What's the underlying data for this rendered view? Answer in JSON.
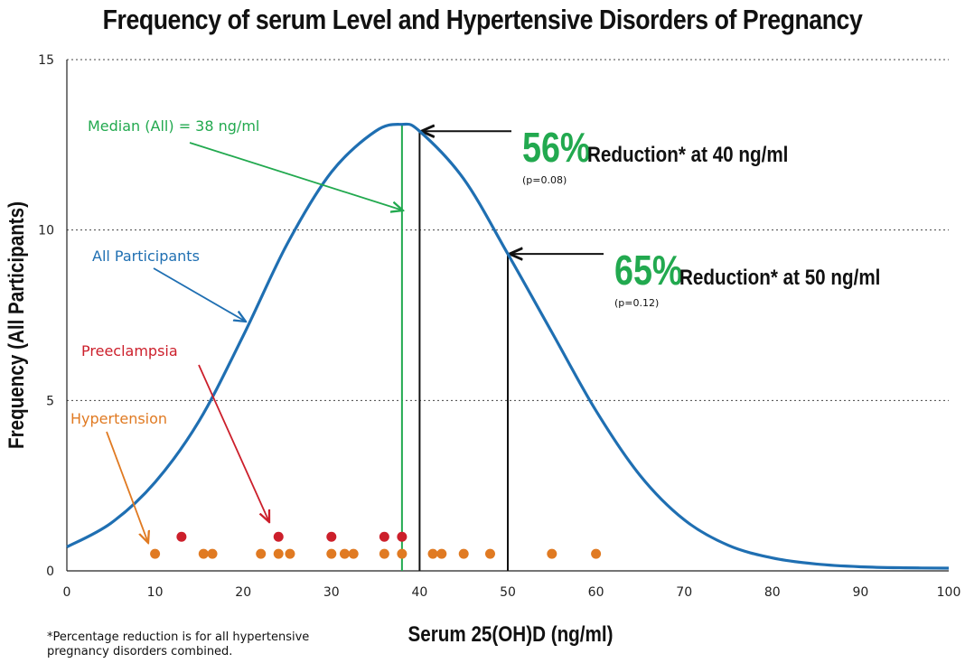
{
  "chart_data": {
    "type": "line",
    "title": "Frequency of serum Level and Hypertensive Disorders of Pregnancy",
    "xlabel": "Serum 25(OH)D (ng/ml)",
    "ylabel": "Frequency (All Participants)",
    "xlim": [
      0,
      100
    ],
    "ylim": [
      0,
      15
    ],
    "x_ticks": [
      0,
      10,
      20,
      30,
      40,
      50,
      60,
      70,
      80,
      90,
      100
    ],
    "y_ticks": [
      0,
      5,
      10,
      15
    ],
    "grid": "horizontal dotted",
    "colors": {
      "all_participants": "#1f6fb2",
      "median": "#22a94f",
      "preeclampsia": "#cc1f2b",
      "hypertension": "#e07a22",
      "reduction_percent": "#22a94f"
    },
    "series": [
      {
        "name": "All Participants",
        "type": "line",
        "points": [
          [
            0,
            0.7
          ],
          [
            5,
            1.4
          ],
          [
            10,
            2.6
          ],
          [
            15,
            4.4
          ],
          [
            20,
            6.9
          ],
          [
            25,
            9.6
          ],
          [
            30,
            11.7
          ],
          [
            35,
            12.9
          ],
          [
            38,
            13.1
          ],
          [
            40,
            12.9
          ],
          [
            45,
            11.5
          ],
          [
            50,
            9.3
          ],
          [
            55,
            7.0
          ],
          [
            60,
            4.7
          ],
          [
            65,
            2.8
          ],
          [
            70,
            1.5
          ],
          [
            75,
            0.75
          ],
          [
            80,
            0.38
          ],
          [
            85,
            0.2
          ],
          [
            90,
            0.12
          ],
          [
            95,
            0.09
          ],
          [
            100,
            0.08
          ]
        ]
      },
      {
        "name": "Preeclampsia",
        "type": "scatter",
        "points": [
          [
            13,
            1
          ],
          [
            24,
            1
          ],
          [
            30,
            1
          ],
          [
            36,
            1
          ],
          [
            38,
            1
          ]
        ]
      },
      {
        "name": "Hypertension",
        "type": "scatter",
        "points": [
          [
            10,
            0.5
          ],
          [
            15.5,
            0.5
          ],
          [
            16.5,
            0.5
          ],
          [
            22,
            0.5
          ],
          [
            24,
            0.5
          ],
          [
            25.3,
            0.5
          ],
          [
            30,
            0.5
          ],
          [
            31.5,
            0.5
          ],
          [
            32.5,
            0.5
          ],
          [
            36,
            0.5
          ],
          [
            38,
            0.5
          ],
          [
            41.5,
            0.5
          ],
          [
            42.5,
            0.5
          ],
          [
            45,
            0.5
          ],
          [
            48,
            0.5
          ],
          [
            55,
            0.5
          ],
          [
            60,
            0.5
          ]
        ]
      }
    ],
    "annotations": {
      "median": {
        "label": "Median (All) = 38 ng/ml",
        "x": 38
      },
      "all_participants": {
        "label": "All Participants"
      },
      "preeclampsia": {
        "label": "Preeclampsia"
      },
      "hypertension": {
        "label": "Hypertension"
      },
      "reductions": [
        {
          "x": 40,
          "percent": "56%",
          "text": "Reduction* at 40 ng/ml",
          "p": "(p=0.08)"
        },
        {
          "x": 50,
          "percent": "65%",
          "text": "Reduction* at 50 ng/ml",
          "p": "(p=0.12)"
        }
      ]
    },
    "footnote": "*Percentage reduction is for all hypertensive pregnancy disorders combined."
  }
}
